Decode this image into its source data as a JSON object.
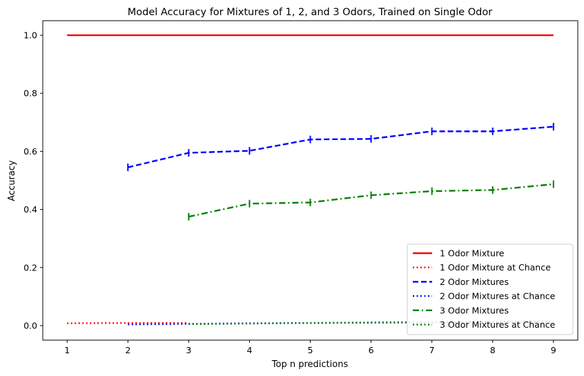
{
  "chart_data": {
    "type": "line",
    "title": "Model Accuracy for Mixtures of 1, 2, and 3 Odors, Trained on Single Odor",
    "xlabel": "Top n predictions",
    "ylabel": "Accuracy",
    "xlim": [
      0.6,
      9.4
    ],
    "ylim": [
      -0.05,
      1.05
    ],
    "xticks": [
      1,
      2,
      3,
      4,
      5,
      6,
      7,
      8,
      9
    ],
    "yticks": [
      0.0,
      0.2,
      0.4,
      0.6,
      0.8,
      1.0
    ],
    "grid": false,
    "legend_position": "lower-right",
    "series": [
      {
        "name": "1 Odor Mixture",
        "color": "#ff0000",
        "style": "solid",
        "x": [
          1,
          2,
          3,
          4,
          5,
          6,
          7,
          8,
          9
        ],
        "y": [
          1.0,
          1.0,
          1.0,
          1.0,
          1.0,
          1.0,
          1.0,
          1.0,
          1.0
        ],
        "err": null
      },
      {
        "name": "1 Odor Mixture at Chance",
        "color": "#ff0000",
        "style": "dotted",
        "x": [
          1,
          2,
          3
        ],
        "y": [
          0.008,
          0.009,
          0.009
        ],
        "err": null
      },
      {
        "name": "2 Odor Mixtures",
        "color": "#0000ff",
        "style": "dashed",
        "x": [
          2,
          3,
          4,
          5,
          6,
          7,
          8,
          9
        ],
        "y": [
          0.545,
          0.595,
          0.602,
          0.641,
          0.643,
          0.669,
          0.669,
          0.685
        ],
        "err": [
          0.013,
          0.013,
          0.013,
          0.013,
          0.013,
          0.013,
          0.013,
          0.013
        ]
      },
      {
        "name": "2 Odor Mixtures at Chance",
        "color": "#0000ff",
        "style": "dotted",
        "x": [
          2,
          3,
          4,
          5,
          6,
          7,
          8,
          9
        ],
        "y": [
          0.004,
          0.006,
          0.008,
          0.009,
          0.01,
          0.011,
          0.012,
          0.013
        ],
        "err": null
      },
      {
        "name": "3 Odor Mixtures",
        "color": "#008000",
        "style": "dashdot",
        "x": [
          3,
          4,
          5,
          6,
          7,
          8,
          9
        ],
        "y": [
          0.375,
          0.42,
          0.424,
          0.449,
          0.463,
          0.467,
          0.487
        ],
        "err": [
          0.013,
          0.013,
          0.013,
          0.013,
          0.013,
          0.013,
          0.013
        ]
      },
      {
        "name": "3 Odor Mixtures at Chance",
        "color": "#008000",
        "style": "dotted",
        "x": [
          3,
          4,
          5,
          6,
          7,
          8,
          9
        ],
        "y": [
          0.005,
          0.007,
          0.009,
          0.011,
          0.012,
          0.014,
          0.016
        ],
        "err": null
      }
    ]
  }
}
